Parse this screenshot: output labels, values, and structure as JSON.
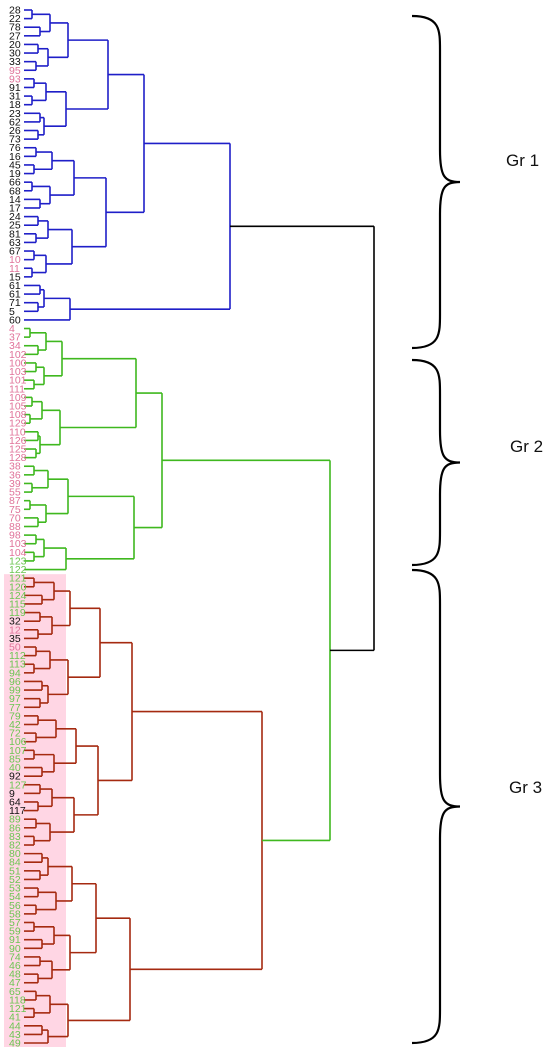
{
  "colors": {
    "cluster_blue": "#1f1fc8",
    "cluster_green": "#3fb81f",
    "cluster_red": "#a52a10",
    "root": "#000000",
    "label_black": "#111111",
    "label_pink": "#e0739a",
    "label_green": "#6cc552",
    "highlight": "#ffd6e4"
  },
  "leaves": [
    {
      "t": "28",
      "c": "black"
    },
    {
      "t": "22",
      "c": "black"
    },
    {
      "t": "78",
      "c": "black"
    },
    {
      "t": "27",
      "c": "black"
    },
    {
      "t": "20",
      "c": "black"
    },
    {
      "t": "30",
      "c": "black"
    },
    {
      "t": "33",
      "c": "black"
    },
    {
      "t": "95",
      "c": "pink"
    },
    {
      "t": "93",
      "c": "pink"
    },
    {
      "t": "91",
      "c": "black"
    },
    {
      "t": "31",
      "c": "black"
    },
    {
      "t": "18",
      "c": "black"
    },
    {
      "t": "23",
      "c": "black"
    },
    {
      "t": "62",
      "c": "black"
    },
    {
      "t": "26",
      "c": "black"
    },
    {
      "t": "73",
      "c": "black"
    },
    {
      "t": "76",
      "c": "black"
    },
    {
      "t": "16",
      "c": "black"
    },
    {
      "t": "45",
      "c": "black"
    },
    {
      "t": "19",
      "c": "black"
    },
    {
      "t": "66",
      "c": "black"
    },
    {
      "t": "68",
      "c": "black"
    },
    {
      "t": "14",
      "c": "black"
    },
    {
      "t": "17",
      "c": "black"
    },
    {
      "t": "24",
      "c": "black"
    },
    {
      "t": "25",
      "c": "black"
    },
    {
      "t": "81",
      "c": "black"
    },
    {
      "t": "63",
      "c": "black"
    },
    {
      "t": "67",
      "c": "black"
    },
    {
      "t": "10",
      "c": "pink"
    },
    {
      "t": "11",
      "c": "pink"
    },
    {
      "t": "15",
      "c": "black"
    },
    {
      "t": "61",
      "c": "black"
    },
    {
      "t": "61",
      "c": "black"
    },
    {
      "t": "71",
      "c": "black"
    },
    {
      "t": "5",
      "c": "black"
    },
    {
      "t": "60",
      "c": "black"
    },
    {
      "t": "4",
      "c": "pink"
    },
    {
      "t": "37",
      "c": "pink"
    },
    {
      "t": "34",
      "c": "pink"
    },
    {
      "t": "102",
      "c": "pink"
    },
    {
      "t": "100",
      "c": "pink"
    },
    {
      "t": "103",
      "c": "pink"
    },
    {
      "t": "101",
      "c": "pink"
    },
    {
      "t": "111",
      "c": "pink"
    },
    {
      "t": "109",
      "c": "pink"
    },
    {
      "t": "105",
      "c": "pink"
    },
    {
      "t": "108",
      "c": "pink"
    },
    {
      "t": "129",
      "c": "pink"
    },
    {
      "t": "110",
      "c": "pink"
    },
    {
      "t": "126",
      "c": "pink"
    },
    {
      "t": "125",
      "c": "pink"
    },
    {
      "t": "128",
      "c": "pink"
    },
    {
      "t": "38",
      "c": "pink"
    },
    {
      "t": "36",
      "c": "pink"
    },
    {
      "t": "39",
      "c": "pink"
    },
    {
      "t": "55",
      "c": "pink"
    },
    {
      "t": "87",
      "c": "pink"
    },
    {
      "t": "75",
      "c": "pink"
    },
    {
      "t": "70",
      "c": "pink"
    },
    {
      "t": "88",
      "c": "pink"
    },
    {
      "t": "98",
      "c": "pink"
    },
    {
      "t": "103",
      "c": "pink"
    },
    {
      "t": "104",
      "c": "pink"
    },
    {
      "t": "123",
      "c": "green"
    },
    {
      "t": "122",
      "c": "green"
    },
    {
      "t": "121",
      "c": "green"
    },
    {
      "t": "120",
      "c": "green"
    },
    {
      "t": "124",
      "c": "green"
    },
    {
      "t": "115",
      "c": "green"
    },
    {
      "t": "119",
      "c": "green"
    },
    {
      "t": "32",
      "c": "black"
    },
    {
      "t": "12",
      "c": "pink"
    },
    {
      "t": "35",
      "c": "black"
    },
    {
      "t": "50",
      "c": "pink"
    },
    {
      "t": "112",
      "c": "green"
    },
    {
      "t": "113",
      "c": "green"
    },
    {
      "t": "94",
      "c": "green"
    },
    {
      "t": "96",
      "c": "green"
    },
    {
      "t": "99",
      "c": "green"
    },
    {
      "t": "97",
      "c": "green"
    },
    {
      "t": "77",
      "c": "green"
    },
    {
      "t": "79",
      "c": "green"
    },
    {
      "t": "42",
      "c": "green"
    },
    {
      "t": "72",
      "c": "green"
    },
    {
      "t": "106",
      "c": "green"
    },
    {
      "t": "107",
      "c": "green"
    },
    {
      "t": "85",
      "c": "green"
    },
    {
      "t": "40",
      "c": "green"
    },
    {
      "t": "92",
      "c": "black"
    },
    {
      "t": "127",
      "c": "green"
    },
    {
      "t": "9",
      "c": "black"
    },
    {
      "t": "64",
      "c": "black"
    },
    {
      "t": "117",
      "c": "black"
    },
    {
      "t": "89",
      "c": "green"
    },
    {
      "t": "86",
      "c": "green"
    },
    {
      "t": "83",
      "c": "green"
    },
    {
      "t": "82",
      "c": "green"
    },
    {
      "t": "80",
      "c": "green"
    },
    {
      "t": "84",
      "c": "green"
    },
    {
      "t": "51",
      "c": "green"
    },
    {
      "t": "52",
      "c": "green"
    },
    {
      "t": "53",
      "c": "green"
    },
    {
      "t": "54",
      "c": "green"
    },
    {
      "t": "56",
      "c": "green"
    },
    {
      "t": "58",
      "c": "green"
    },
    {
      "t": "57",
      "c": "green"
    },
    {
      "t": "59",
      "c": "green"
    },
    {
      "t": "91",
      "c": "green"
    },
    {
      "t": "90",
      "c": "green"
    },
    {
      "t": "74",
      "c": "green"
    },
    {
      "t": "46",
      "c": "green"
    },
    {
      "t": "48",
      "c": "green"
    },
    {
      "t": "47",
      "c": "green"
    },
    {
      "t": "65",
      "c": "green"
    },
    {
      "t": "118",
      "c": "green"
    },
    {
      "t": "121",
      "c": "green"
    },
    {
      "t": "41",
      "c": "green"
    },
    {
      "t": "44",
      "c": "green"
    },
    {
      "t": "43",
      "c": "green"
    },
    {
      "t": "49",
      "c": "green"
    }
  ],
  "groups": [
    {
      "label": "Gr 1"
    },
    {
      "label": "Gr 2"
    },
    {
      "label": "Gr 3"
    }
  ]
}
